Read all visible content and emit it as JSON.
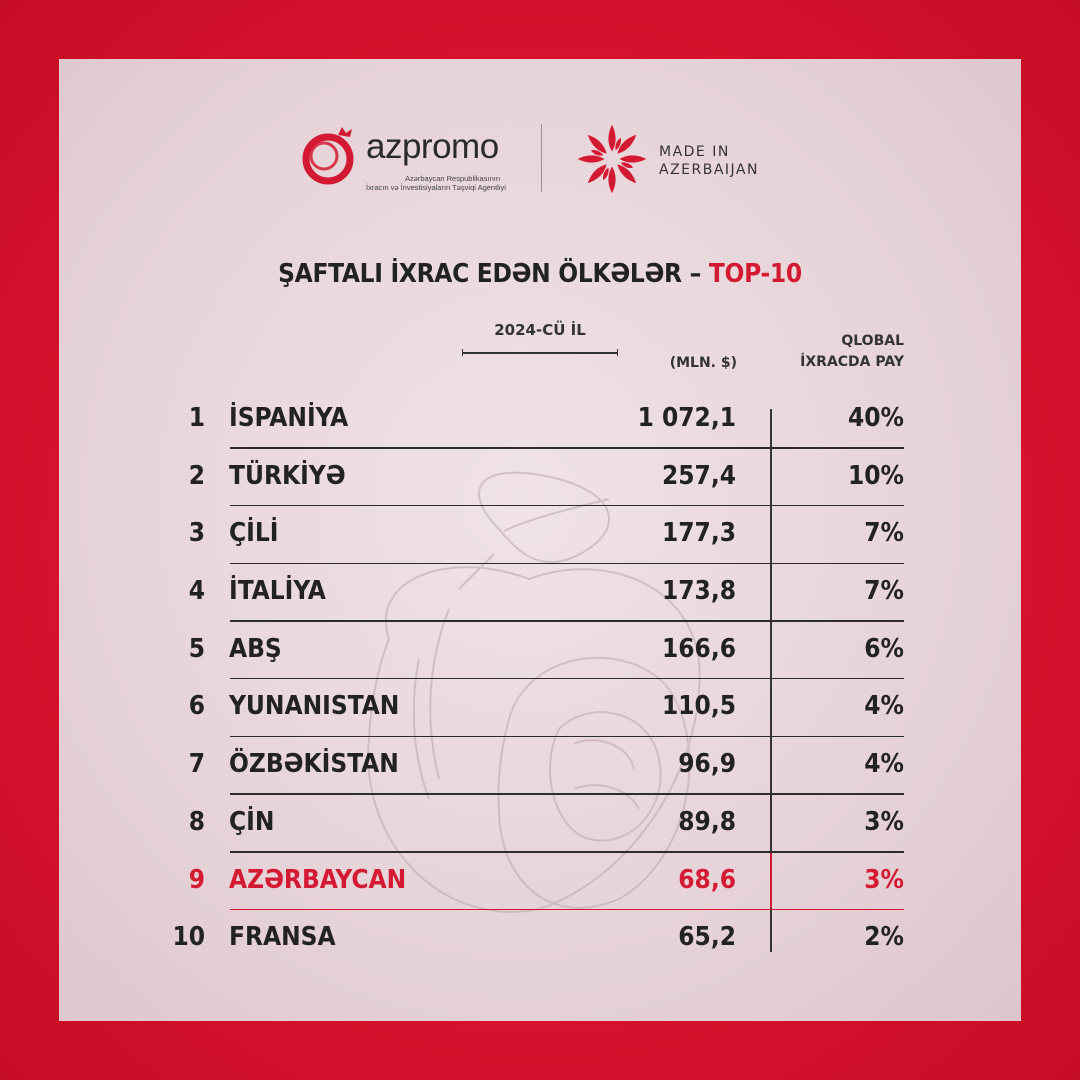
{
  "header": {
    "azpromo_name": "azpromo",
    "azpromo_subtitle_line1": "Azərbaycan Respublikasının",
    "azpromo_subtitle_line2": "İxracın və İnvestisiyaların Təşviqi Agentliyi",
    "made_in_line1": "MADE IN",
    "made_in_line2": "AZERBAIJAN"
  },
  "title": {
    "main": "ŞAFTALI İXRAC EDƏN ÖLKƏLƏR –",
    "accent": "TOP-10"
  },
  "columns": {
    "year": "2024-CÜ İL",
    "value_unit": "(MLN. $)",
    "share_line1": "QLOBAL",
    "share_line2": "İXRACDA PAY"
  },
  "rows": [
    {
      "rank": "1",
      "country": "İSPANİYA",
      "value": "1 072,1",
      "share": "40%"
    },
    {
      "rank": "2",
      "country": "TÜRKİYƏ",
      "value": "257,4",
      "share": "10%"
    },
    {
      "rank": "3",
      "country": "ÇİLİ",
      "value": "177,3",
      "share": "7%"
    },
    {
      "rank": "4",
      "country": "İTALİYA",
      "value": "173,8",
      "share": "7%"
    },
    {
      "rank": "5",
      "country": "ABŞ",
      "value": "166,6",
      "share": "6%"
    },
    {
      "rank": "6",
      "country": "YUNANISTAN",
      "value": "110,5",
      "share": "4%"
    },
    {
      "rank": "7",
      "country": "ÖZBƏKİSTAN",
      "value": "96,9",
      "share": "4%"
    },
    {
      "rank": "8",
      "country": "ÇİN",
      "value": "89,8",
      "share": "3%"
    },
    {
      "rank": "9",
      "country": "AZƏRBAYCAN",
      "value": "68,6",
      "share": "3%"
    },
    {
      "rank": "10",
      "country": "FRANSA",
      "value": "65,2",
      "share": "2%"
    }
  ],
  "colors": {
    "frame_red": "#d4112c",
    "accent_red": "#d41a33",
    "card_bg": "#e6d3d8",
    "text_dark": "#222222"
  }
}
